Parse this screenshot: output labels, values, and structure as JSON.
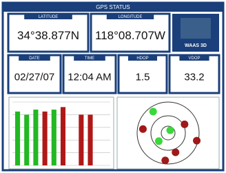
{
  "header": {
    "title": "GPS STATUS"
  },
  "fields": [
    {
      "label": "LATITUDE",
      "value": "34°38.877N"
    },
    {
      "label": "LONGITUDE",
      "value": "118°08.707W"
    },
    {
      "label": "DATE",
      "value": "02/27/07"
    },
    {
      "label": "TIME",
      "value": "12:04 AM"
    },
    {
      "label": "HDOP",
      "value": "1.5"
    },
    {
      "label": "VDOP",
      "value": "33.2"
    }
  ],
  "fix_badge": "WAAS 3D",
  "signal_chart": {
    "ylim": [
      0,
      100
    ],
    "yticks": [
      0,
      20,
      40,
      60,
      80,
      100
    ],
    "bars": [
      {
        "value": 85,
        "color": "#22b822"
      },
      {
        "value": 80,
        "color": "#22b822"
      },
      {
        "value": 88,
        "color": "#22b822"
      },
      {
        "value": 85,
        "color": "#b01818"
      },
      {
        "value": 88,
        "color": "#22b822"
      },
      {
        "value": 92,
        "color": "#b01818"
      },
      {
        "value": null,
        "color": "#b01818"
      },
      {
        "value": 80,
        "color": "#b01818"
      },
      {
        "value": 80,
        "color": "#b01818"
      }
    ]
  },
  "sky_plot": {
    "satellites": [
      {
        "azimuth": 325,
        "elevation": 14,
        "color": "#3ad83a"
      },
      {
        "azimuth": 37,
        "elevation": 80,
        "color": "#3ad83a"
      },
      {
        "azimuth": 229,
        "elevation": 54,
        "color": "#3ad83a"
      },
      {
        "azimuth": 279,
        "elevation": 16,
        "color": "#a01818"
      },
      {
        "azimuth": 62,
        "elevation": 36,
        "color": "#a01818"
      },
      {
        "azimuth": 105,
        "elevation": 4,
        "color": "#a01818"
      },
      {
        "azimuth": 159,
        "elevation": 30,
        "color": "#a01818"
      },
      {
        "azimuth": 186,
        "elevation": 10,
        "color": "#a01818"
      }
    ]
  }
}
